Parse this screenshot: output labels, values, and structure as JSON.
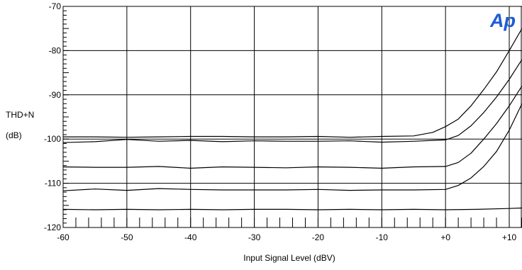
{
  "chart_data": {
    "type": "line",
    "title": "",
    "logo_text": "Ap",
    "xlabel": "Input Signal Level (dBV)",
    "ylabel_line1": "THD+N",
    "ylabel_line2": "(dB)",
    "xlim": [
      -60,
      12
    ],
    "ylim": [
      -120,
      -70
    ],
    "x_ticks": [
      -60,
      -50,
      -40,
      -30,
      -20,
      -10,
      0,
      10
    ],
    "x_tick_labels": [
      "-60",
      "-50",
      "-40",
      "-30",
      "-20",
      "-10",
      "+0",
      "+10"
    ],
    "y_ticks": [
      -120,
      -110,
      -100,
      -90,
      -80,
      -70
    ],
    "y_tick_labels": [
      "-120",
      "-110",
      "-100",
      "-90",
      "-80",
      "-70"
    ],
    "grid": true,
    "colors": {
      "line": "#000000",
      "grid": "#000000",
      "logo": "#1e5bd6"
    },
    "series": [
      {
        "x": [
          -60,
          -55,
          -50,
          -45,
          -40,
          -35,
          -30,
          -25,
          -20,
          -15,
          -10,
          -5,
          -2,
          0,
          2,
          4,
          6,
          8,
          10,
          12
        ],
        "y": [
          -99.5,
          -99.5,
          -99.6,
          -99.5,
          -99.4,
          -99.4,
          -99.5,
          -99.5,
          -99.4,
          -99.6,
          -99.4,
          -99.3,
          -98.5,
          -97.2,
          -95.5,
          -92.5,
          -88.8,
          -84.8,
          -80.0,
          -75.0
        ]
      },
      {
        "x": [
          -60,
          -55,
          -50,
          -45,
          -40,
          -35,
          -30,
          -25,
          -20,
          -15,
          -10,
          -5,
          0,
          2,
          4,
          6,
          8,
          10,
          12
        ],
        "y": [
          -100.8,
          -100.6,
          -100.1,
          -100.5,
          -100.3,
          -100.6,
          -100.4,
          -100.5,
          -100.5,
          -100.4,
          -100.7,
          -100.5,
          -100.2,
          -99.2,
          -97.0,
          -94.0,
          -90.5,
          -86.5,
          -82.0
        ]
      },
      {
        "x": [
          -60,
          -55,
          -50,
          -45,
          -40,
          -35,
          -30,
          -25,
          -20,
          -15,
          -10,
          -5,
          0,
          2,
          4,
          6,
          8,
          10,
          12
        ],
        "y": [
          -106.3,
          -106.4,
          -106.4,
          -106.2,
          -106.6,
          -106.3,
          -106.4,
          -106.5,
          -106.3,
          -106.4,
          -106.6,
          -106.3,
          -106.2,
          -105.3,
          -103.2,
          -100.0,
          -96.5,
          -92.5,
          -88.0
        ]
      },
      {
        "x": [
          -60,
          -55,
          -50,
          -45,
          -40,
          -35,
          -30,
          -25,
          -20,
          -15,
          -10,
          -5,
          0,
          2,
          4,
          6,
          8,
          10,
          12
        ],
        "y": [
          -111.7,
          -111.3,
          -111.6,
          -111.2,
          -111.4,
          -111.5,
          -111.5,
          -111.5,
          -111.4,
          -111.6,
          -111.5,
          -111.5,
          -111.4,
          -110.5,
          -108.8,
          -106.2,
          -102.8,
          -98.0,
          -92.0
        ]
      },
      {
        "x": [
          -60,
          -55,
          -50,
          -45,
          -40,
          -35,
          -30,
          -25,
          -20,
          -15,
          -10,
          -5,
          0,
          5,
          10,
          12
        ],
        "y": [
          -115.9,
          -116.0,
          -115.9,
          -116.0,
          -115.9,
          -116.0,
          -115.9,
          -115.9,
          -116.0,
          -115.9,
          -116.0,
          -115.9,
          -116.0,
          -115.9,
          -115.7,
          -115.6
        ]
      }
    ]
  }
}
